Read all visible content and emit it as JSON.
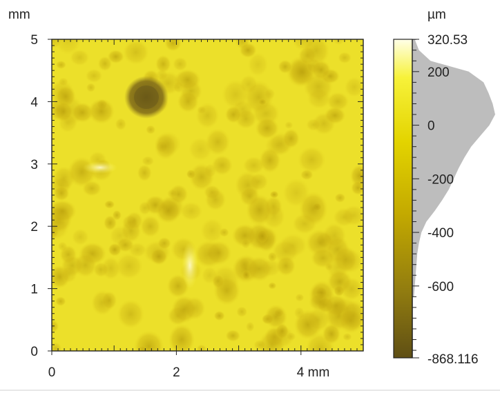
{
  "chart_data": {
    "type": "heatmap",
    "title": "",
    "map": {
      "x_unit": "mm",
      "y_unit": "mm",
      "xlim": [
        0,
        5
      ],
      "ylim": [
        0,
        5
      ],
      "x_ticks": [
        0,
        2,
        4
      ],
      "x_tick_labels": [
        "0",
        "2",
        "4 mm"
      ],
      "y_ticks": [
        0,
        1,
        2,
        3,
        4,
        5
      ],
      "y_tick_labels": [
        "0",
        "1",
        "2",
        "3",
        "4",
        "5"
      ],
      "y_unit_label": "mm"
    },
    "colorbar": {
      "unit_label": "µm",
      "max_label": "320.53",
      "min_label": "-868.116",
      "max": 320.53,
      "min": -868.116,
      "ticks": [
        200,
        0,
        -200,
        -400,
        -600
      ],
      "tick_labels": [
        "200",
        "0",
        "-200",
        "-400",
        "-600"
      ],
      "colors": [
        "#5f4f14",
        "#8f7a10",
        "#c3a900",
        "#e3d400",
        "#f7f23a",
        "#ffffe8"
      ]
    },
    "histogram": {
      "levels": [
        320,
        280,
        240,
        200,
        160,
        120,
        80,
        40,
        0,
        -40,
        -80,
        -120,
        -160,
        -200,
        -240,
        -280,
        -320,
        -360,
        -400,
        -440,
        -480,
        -520,
        -560,
        -600,
        -640
      ],
      "relative_counts": [
        0.03,
        0.08,
        0.22,
        0.68,
        0.86,
        0.92,
        0.97,
        1.0,
        0.93,
        0.82,
        0.71,
        0.63,
        0.56,
        0.5,
        0.44,
        0.36,
        0.27,
        0.17,
        0.11,
        0.08,
        0.06,
        0.05,
        0.04,
        0.03,
        0.02
      ]
    }
  }
}
